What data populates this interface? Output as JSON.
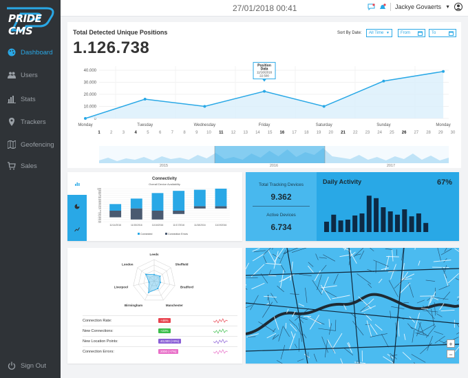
{
  "sidebar": {
    "logo": "PRIDE CMS",
    "items": [
      {
        "label": "Dashboard",
        "icon": "palette-icon",
        "active": true
      },
      {
        "label": "Users",
        "icon": "users-icon"
      },
      {
        "label": "Stats",
        "icon": "bar-chart-icon"
      },
      {
        "label": "Trackers",
        "icon": "map-pin-icon"
      },
      {
        "label": "Geofencing",
        "icon": "map-icon"
      },
      {
        "label": "Sales",
        "icon": "cart-icon"
      }
    ],
    "sign_out": "Sign Out"
  },
  "header": {
    "datetime": "27/01/2018 00:41",
    "user": "Jackye Govaerts"
  },
  "main": {
    "title": "Total Detected Unique Positions",
    "total": "1.126.738",
    "sort_by_label": "Sort By Date:",
    "period": "All Time",
    "from": "From",
    "to": "To",
    "tooltip_title": "Position Data",
    "tooltip_date": "11/16/2016",
    "tooltip_value": "22.500",
    "timeline_years": [
      "2015",
      "2016",
      "2017"
    ]
  },
  "chart_data": [
    {
      "type": "area",
      "title": "Total Detected Unique Positions",
      "categories": [
        "Monday",
        "Tuesday",
        "Wednesday",
        "Friday",
        "Saturday",
        "Sunday",
        "Monday"
      ],
      "x_ticks": [
        1,
        2,
        3,
        4,
        5,
        6,
        7,
        8,
        9,
        10,
        11,
        12,
        13,
        14,
        15,
        16,
        17,
        18,
        19,
        20,
        21,
        22,
        23,
        24,
        25,
        26,
        27,
        28,
        29,
        30
      ],
      "bold_ticks": [
        1,
        4,
        11,
        16,
        21,
        26
      ],
      "values": [
        0,
        16000,
        10000,
        22500,
        10000,
        31000,
        39000
      ],
      "y_ticks": [
        "40.000",
        "30.000",
        "20.000",
        "10.000",
        "0"
      ],
      "ylim": [
        0,
        40000
      ],
      "color": "#29a8e6"
    },
    {
      "type": "bar",
      "title": "Connectivity",
      "subtitle": "Overall Device Availability",
      "categories": [
        "11/14/2016",
        "11/15/2016",
        "11/16/2016",
        "11/17/2016",
        "11/18/2016",
        "11/19/2016"
      ],
      "series": [
        {
          "name": "Connected",
          "color": "#29a8e6",
          "values": [
            [
              0,
              30
            ],
            [
              10,
              55
            ],
            [
              0,
              80
            ],
            [
              0,
              90
            ],
            [
              20,
              95
            ],
            [
              20,
              100
            ]
          ]
        },
        {
          "name": "Connection Errors",
          "color": "#4a5a70",
          "values": [
            [
              -30,
              0
            ],
            [
              -40,
              10
            ],
            [
              -40,
              0
            ],
            [
              -15,
              0
            ],
            [
              10,
              20
            ],
            [
              10,
              20
            ]
          ]
        }
      ],
      "y_ticks": [
        "100",
        "90",
        "80",
        "70",
        "60",
        "50",
        "40",
        "30",
        "20",
        "10",
        "0",
        "-10",
        "-20",
        "-30",
        "-40",
        "-50"
      ],
      "ylim": [
        -50,
        100
      ]
    },
    {
      "type": "radar",
      "categories": [
        "Leeds",
        "Sheffield",
        "Bradford",
        "Manchester",
        "Birmingham",
        "Liverpool",
        "London"
      ],
      "values": [
        0.3,
        0.35,
        0.3,
        0.4,
        0.6,
        0.25,
        0.5
      ]
    }
  ],
  "stats": {
    "tracking_label": "Total Tracking Devices",
    "tracking_value": "9.362",
    "active_label": "Active Devices",
    "active_value": "6.734",
    "daily_title": "Daily Activity",
    "daily_pct": "67%",
    "daily_bars": [
      25,
      42,
      28,
      30,
      40,
      45,
      88,
      82,
      60,
      50,
      42,
      55,
      38,
      45,
      22
    ]
  },
  "metrics": [
    {
      "label": "Connection Rate:",
      "badge": "+46%",
      "color": "#e8434f",
      "spark_color": "#e8434f"
    },
    {
      "label": "New Connections:",
      "badge": "+23%",
      "color": "#3cbf4c",
      "spark_color": "#3cbf4c"
    },
    {
      "label": "New Location Points:",
      "badge": "40,000 (+5%)",
      "color": "#8a5fd6",
      "spark_color": "#8a5fd6"
    },
    {
      "label": "Connection Errors:",
      "badge": "2000 (+7%)",
      "color": "#e86fc8",
      "spark_color": "#e86fc8"
    }
  ],
  "map": {
    "zoom_in": "+",
    "zoom_out": "−"
  }
}
